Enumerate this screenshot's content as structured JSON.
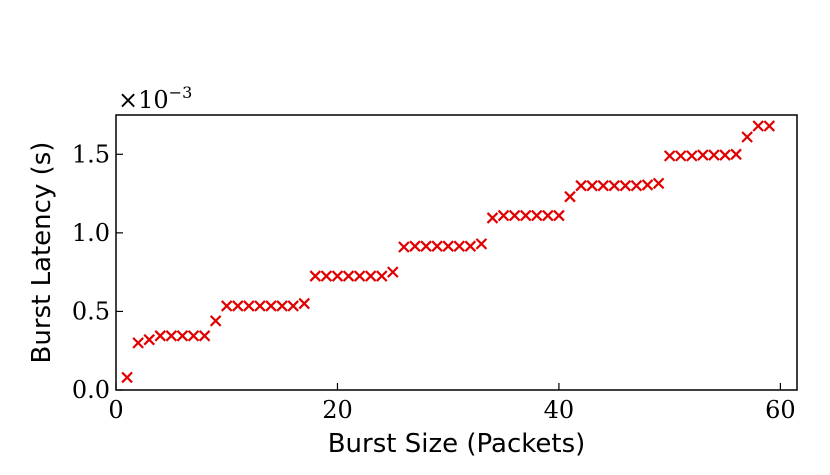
{
  "chart_data": {
    "type": "scatter",
    "xlabel": "Burst Size (Packets)",
    "ylabel": "Burst Latency (s)",
    "y_multiplier": {
      "base": "×10",
      "exponent": "−3"
    },
    "xlim": [
      0,
      61.5
    ],
    "ylim": [
      0.0,
      1.75
    ],
    "x_ticks": [
      {
        "value": 0,
        "label": "0"
      },
      {
        "value": 20,
        "label": "20"
      },
      {
        "value": 40,
        "label": "40"
      },
      {
        "value": 60,
        "label": "60"
      }
    ],
    "y_ticks": [
      {
        "value": 0.0,
        "label": "0.0"
      },
      {
        "value": 0.5,
        "label": "0.5"
      },
      {
        "value": 1.0,
        "label": "1.0"
      },
      {
        "value": 1.5,
        "label": "1.5"
      }
    ],
    "grid": false,
    "marker": "x",
    "color": "#e00000",
    "series": [
      {
        "x": [
          1,
          2,
          3,
          4,
          5,
          6,
          7,
          8,
          9,
          10,
          11,
          12,
          13,
          14,
          15,
          16,
          17,
          18,
          19,
          20,
          21,
          22,
          23,
          24,
          25,
          26,
          27,
          28,
          29,
          30,
          31,
          32,
          33,
          34,
          35,
          36,
          37,
          38,
          39,
          40,
          41,
          42,
          43,
          44,
          45,
          46,
          47,
          48,
          49,
          50,
          51,
          52,
          53,
          54,
          55,
          56,
          57,
          58,
          59
        ],
        "y": [
          0.08,
          0.3,
          0.32,
          0.345,
          0.345,
          0.345,
          0.345,
          0.345,
          0.44,
          0.535,
          0.535,
          0.535,
          0.535,
          0.535,
          0.535,
          0.535,
          0.55,
          0.725,
          0.725,
          0.725,
          0.725,
          0.725,
          0.725,
          0.725,
          0.75,
          0.91,
          0.915,
          0.915,
          0.915,
          0.915,
          0.915,
          0.915,
          0.93,
          1.095,
          1.11,
          1.11,
          1.11,
          1.11,
          1.11,
          1.11,
          1.23,
          1.3,
          1.3,
          1.3,
          1.3,
          1.3,
          1.3,
          1.305,
          1.315,
          1.49,
          1.49,
          1.49,
          1.495,
          1.495,
          1.495,
          1.5,
          1.61,
          1.68,
          1.68
        ]
      }
    ]
  }
}
